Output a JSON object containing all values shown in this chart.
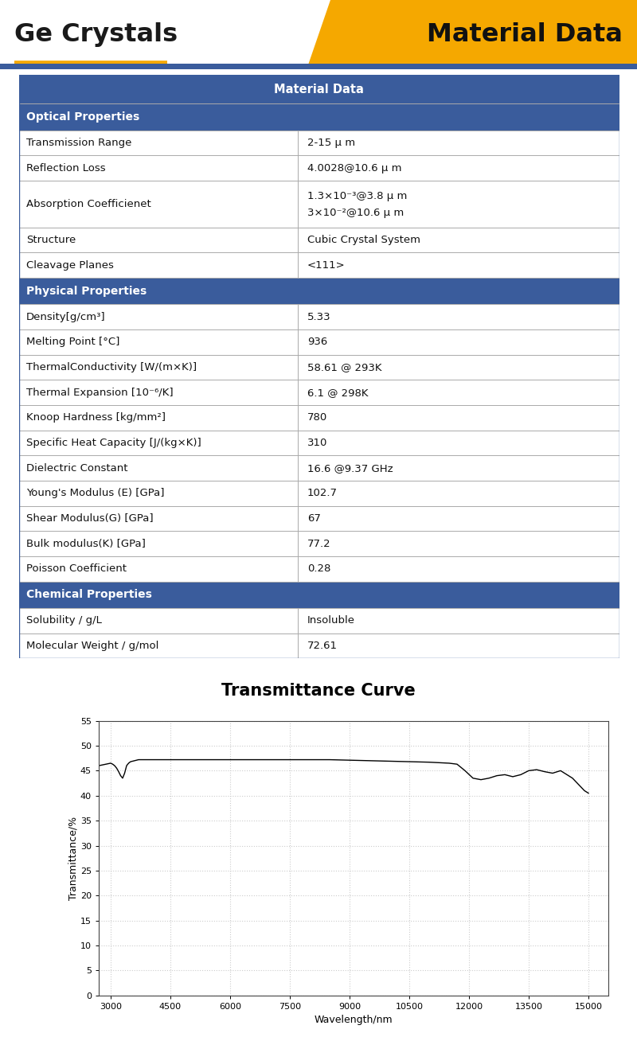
{
  "title_left": "Ge Crystals",
  "title_right": "Material Data",
  "header_color": "#3a5c9c",
  "section_color": "#3a5c9c",
  "orange_color": "#f5a800",
  "border_color": "#aaaaaa",
  "table_border_color": "#3a5c9c",
  "table_header": "Material Data",
  "sections": [
    {
      "name": "Optical Properties",
      "rows": [
        [
          "Transmission Range",
          "2-15 μ m"
        ],
        [
          "Reflection Loss",
          "4.0028@10.6 μ m"
        ],
        [
          "Absorption Coefficienet",
          "1.3×10⁻³@3.8 μ m\n3×10⁻²@10.6 μ m"
        ],
        [
          "Structure",
          "Cubic Crystal System"
        ],
        [
          "Cleavage Planes",
          "<111>"
        ]
      ]
    },
    {
      "name": "Physical Properties",
      "rows": [
        [
          "Density[g/cm³]",
          "5.33"
        ],
        [
          "Melting Point [°C]",
          "936"
        ],
        [
          "ThermalConductivity [W/(m×K)]",
          "58.61 @ 293K"
        ],
        [
          "Thermal Expansion [10⁻⁶/K]",
          "6.1 @ 298K"
        ],
        [
          "Knoop Hardness [kg/mm²]",
          "780"
        ],
        [
          "Specific Heat Capacity [J/(kg×K)]",
          "310"
        ],
        [
          "Dielectric Constant",
          "16.6 @9.37 GHz"
        ],
        [
          "Young's Modulus (E) [GPa]",
          "102.7"
        ],
        [
          "Shear Modulus(G) [GPa]",
          "67"
        ],
        [
          "Bulk modulus(K) [GPa]",
          "77.2"
        ],
        [
          "Poisson Coefficient",
          "0.28"
        ]
      ]
    },
    {
      "name": "Chemical Properties",
      "rows": [
        [
          "Solubility / g/L",
          "Insoluble"
        ],
        [
          "Molecular Weight / g/mol",
          "72.61"
        ]
      ]
    }
  ],
  "curve_title": "Transmittance Curve",
  "xlabel": "Wavelength/nm",
  "ylabel": "Transmittance/%",
  "xlim": [
    2700,
    15500
  ],
  "ylim": [
    0,
    55
  ],
  "xticks": [
    3000,
    4500,
    6000,
    7500,
    9000,
    10500,
    12000,
    13500,
    15000
  ],
  "yticks": [
    0,
    5,
    10,
    15,
    20,
    25,
    30,
    35,
    40,
    45,
    50,
    55
  ],
  "curve_x": [
    2700,
    3000,
    3050,
    3100,
    3150,
    3200,
    3250,
    3300,
    3350,
    3400,
    3450,
    3500,
    3600,
    3700,
    3800,
    3900,
    4000,
    4200,
    4500,
    5000,
    5500,
    6000,
    6500,
    7000,
    7500,
    8000,
    8500,
    9000,
    9500,
    10000,
    10500,
    11000,
    11500,
    11700,
    11900,
    12100,
    12300,
    12500,
    12700,
    12900,
    13100,
    13300,
    13500,
    13700,
    13900,
    14100,
    14300,
    14600,
    14900,
    15000
  ],
  "curve_y": [
    46.0,
    46.5,
    46.3,
    46.0,
    45.5,
    44.8,
    44.0,
    43.5,
    44.5,
    46.0,
    46.5,
    46.8,
    47.0,
    47.2,
    47.2,
    47.2,
    47.2,
    47.2,
    47.2,
    47.2,
    47.2,
    47.2,
    47.2,
    47.2,
    47.2,
    47.2,
    47.2,
    47.1,
    47.0,
    46.9,
    46.8,
    46.7,
    46.5,
    46.3,
    45.0,
    43.5,
    43.2,
    43.5,
    44.0,
    44.2,
    43.8,
    44.2,
    45.0,
    45.2,
    44.8,
    44.5,
    45.0,
    43.5,
    41.0,
    40.5
  ],
  "bg_color": "#ffffff",
  "text_color": "#111111",
  "grid_color": "#cccccc"
}
